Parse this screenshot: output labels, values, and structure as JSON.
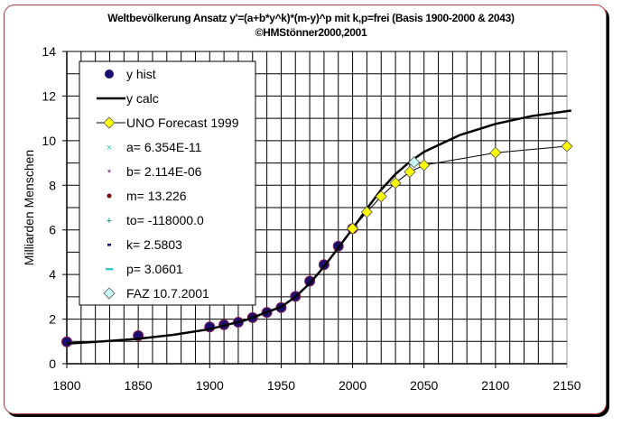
{
  "chart_data": {
    "type": "line",
    "title": "Weltbevölkerung Ansatz y'=(a+b*y^k)*(m-y)^p mit  k,p=frei  (Basis 1900-2000 & 2043)",
    "subtitle": "©HMStönner2000,2001",
    "xlabel": "",
    "ylabel": "Milliarden Menschen",
    "xlim": [
      1800,
      2150
    ],
    "ylim": [
      0,
      14
    ],
    "xticks": [
      "1800",
      "1850",
      "1900",
      "1950",
      "2000",
      "2050",
      "2100",
      "2150"
    ],
    "yticks": [
      "0",
      "2",
      "4",
      "6",
      "8",
      "10",
      "12",
      "14"
    ],
    "grid": true,
    "legend_position": "top-left",
    "series": [
      {
        "name": "y hist",
        "kind": "markers",
        "marker": "circle",
        "color": "#1a0f6e",
        "x": [
          1800,
          1850,
          1900,
          1910,
          1920,
          1930,
          1940,
          1950,
          1960,
          1970,
          1980,
          1990,
          2000
        ],
        "y": [
          0.98,
          1.26,
          1.65,
          1.75,
          1.86,
          2.07,
          2.3,
          2.52,
          3.02,
          3.7,
          4.44,
          5.27,
          6.06
        ]
      },
      {
        "name": "y calc",
        "kind": "line",
        "color": "#000000",
        "x": [
          1800,
          1825,
          1850,
          1875,
          1900,
          1925,
          1950,
          1960,
          1970,
          1980,
          1990,
          2000,
          2010,
          2020,
          2030,
          2040,
          2050,
          2075,
          2100,
          2125,
          2153
        ],
        "y": [
          0.9,
          1.0,
          1.12,
          1.3,
          1.55,
          1.95,
          2.55,
          3.0,
          3.6,
          4.35,
          5.2,
          6.05,
          6.95,
          7.8,
          8.5,
          9.05,
          9.5,
          10.25,
          10.75,
          11.1,
          11.35
        ]
      },
      {
        "name": "UNO Forecast 1999",
        "kind": "line-markers",
        "marker": "diamond",
        "color": "#ffff00",
        "x": [
          2000,
          2010,
          2020,
          2030,
          2040,
          2050,
          2100,
          2150
        ],
        "y": [
          6.06,
          6.8,
          7.5,
          8.1,
          8.6,
          8.9,
          9.46,
          9.75
        ]
      },
      {
        "name": "FAZ 10.7.2001",
        "kind": "markers",
        "marker": "diamond",
        "color": "#ccffff",
        "x": [
          2043
        ],
        "y": [
          9.03
        ]
      }
    ],
    "legend": [
      {
        "label": "y hist",
        "icon": "circle-marker",
        "color": "#1a0f6e"
      },
      {
        "label": "y calc",
        "icon": "line",
        "color": "#000000"
      },
      {
        "label": "UNO Forecast 1999",
        "icon": "line-diamond",
        "color": "#ffff00"
      },
      {
        "label": "a= 6.354E-11",
        "icon": "x-marker",
        "color": "#33cccc"
      },
      {
        "label": "b= 2.114E-06",
        "icon": "star-marker",
        "color": "#800080"
      },
      {
        "label": "m= 13.226",
        "icon": "dot-marker",
        "color": "#800000"
      },
      {
        "label": "to= -118000.0",
        "icon": "plus-marker",
        "color": "#008080"
      },
      {
        "label": "k= 2.5803",
        "icon": "dash-marker",
        "color": "#000080"
      },
      {
        "label": "p= 3.0601",
        "icon": "long-dash-marker",
        "color": "#33cccc"
      },
      {
        "label": "FAZ 10.7.2001",
        "icon": "diamond-outline",
        "color": "#ccffff"
      }
    ]
  }
}
